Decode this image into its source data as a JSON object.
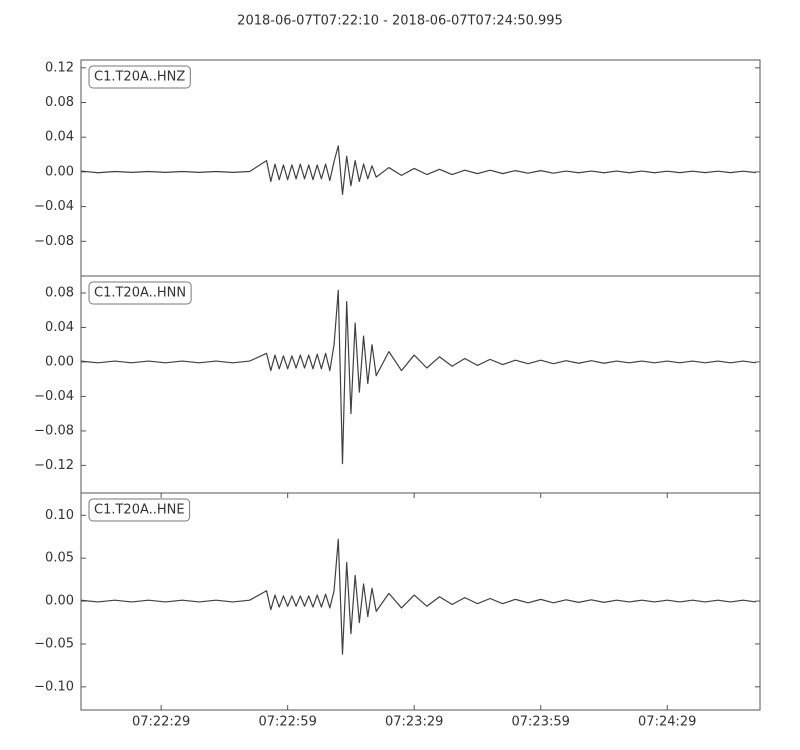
{
  "title": "2018-06-07T07:22:10  -  2018-06-07T07:24:50.995",
  "chart_data": [
    {
      "type": "line",
      "label": "C1.T20A..HNZ",
      "xlim": [
        0,
        160.995
      ],
      "ylim": [
        -0.12,
        0.129
      ],
      "yticks": [
        {
          "value": -0.08,
          "label": "−0.08"
        },
        {
          "value": -0.04,
          "label": "−0.04"
        },
        {
          "value": 0,
          "label": "0.00"
        },
        {
          "value": 0.04,
          "label": "0.04"
        },
        {
          "value": 0.08,
          "label": "0.08"
        },
        {
          "value": 0.12,
          "label": "0.12"
        }
      ],
      "x": [
        0,
        4,
        8,
        12,
        16,
        20,
        24,
        28,
        32,
        36,
        40,
        44,
        45,
        46,
        47,
        48,
        49,
        50,
        51,
        52,
        53,
        54,
        55,
        56,
        57,
        58,
        59,
        60,
        61,
        62,
        63,
        64,
        65,
        66,
        67,
        68,
        69,
        70,
        73,
        76,
        79,
        82,
        85,
        88,
        91,
        94,
        97,
        100,
        103,
        106,
        109,
        112,
        115,
        118,
        121,
        124,
        127,
        130,
        133,
        136,
        139,
        142,
        145,
        148,
        151,
        154,
        157,
        160
      ],
      "series": [
        {
          "color": "#404040",
          "values": [
            0.001,
            -0.001,
            0.0005,
            -0.0005,
            0.0005,
            -0.0005,
            0.0005,
            -0.0005,
            0.0005,
            -0.0005,
            0.0005,
            0.013,
            -0.011,
            0.009,
            -0.009,
            0.008,
            -0.009,
            0.008,
            -0.008,
            0.009,
            -0.008,
            0.008,
            -0.009,
            0.008,
            -0.008,
            0.009,
            -0.01,
            0.012,
            0.03,
            -0.026,
            0.018,
            -0.016,
            0.013,
            -0.011,
            0.009,
            -0.008,
            0.007,
            -0.006,
            0.005,
            -0.004,
            0.004,
            -0.003,
            0.003,
            -0.003,
            0.002,
            -0.002,
            0.002,
            -0.002,
            0.0015,
            -0.0015,
            0.0015,
            -0.0015,
            0.001,
            -0.001,
            0.001,
            -0.001,
            0.001,
            -0.001,
            0.001,
            -0.001,
            0.0008,
            -0.0008,
            0.0008,
            -0.0008,
            0.0008,
            -0.0008,
            0.0008,
            -0.0008
          ]
        }
      ]
    },
    {
      "type": "line",
      "label": "C1.T20A..HNN",
      "xlim": [
        0,
        160.995
      ],
      "ylim": [
        -0.152,
        0.0997
      ],
      "yticks": [
        {
          "value": -0.12,
          "label": "−0.12"
        },
        {
          "value": -0.08,
          "label": "−0.08"
        },
        {
          "value": -0.04,
          "label": "−0.04"
        },
        {
          "value": 0,
          "label": "0.00"
        },
        {
          "value": 0.04,
          "label": "0.04"
        },
        {
          "value": 0.08,
          "label": "0.08"
        }
      ],
      "x": [
        0,
        4,
        8,
        12,
        16,
        20,
        24,
        28,
        32,
        36,
        40,
        44,
        45,
        46,
        47,
        48,
        49,
        50,
        51,
        52,
        53,
        54,
        55,
        56,
        57,
        58,
        59,
        60,
        61,
        62,
        63,
        64,
        65,
        66,
        67,
        68,
        69,
        70,
        73,
        76,
        79,
        82,
        85,
        88,
        91,
        94,
        97,
        100,
        103,
        106,
        109,
        112,
        115,
        118,
        121,
        124,
        127,
        130,
        133,
        136,
        139,
        142,
        145,
        148,
        151,
        154,
        157,
        160
      ],
      "series": [
        {
          "color": "#404040",
          "values": [
            0.001,
            -0.001,
            0.001,
            -0.001,
            0.001,
            -0.001,
            0.001,
            -0.001,
            0.001,
            -0.001,
            0.001,
            0.01,
            -0.01,
            0.008,
            -0.008,
            0.007,
            -0.008,
            0.007,
            -0.007,
            0.008,
            -0.007,
            0.008,
            -0.008,
            0.009,
            -0.008,
            0.01,
            -0.01,
            0.02,
            0.083,
            -0.118,
            0.07,
            -0.06,
            0.045,
            -0.035,
            0.03,
            -0.025,
            0.02,
            -0.016,
            0.012,
            -0.01,
            0.008,
            -0.007,
            0.006,
            -0.005,
            0.004,
            -0.004,
            0.003,
            -0.003,
            0.002,
            -0.002,
            0.002,
            -0.002,
            0.0015,
            -0.0015,
            0.0015,
            -0.0015,
            0.001,
            -0.001,
            0.001,
            -0.001,
            0.001,
            -0.001,
            0.001,
            -0.001,
            0.001,
            -0.001,
            0.001,
            -0.001
          ]
        }
      ]
    },
    {
      "type": "line",
      "label": "C1.T20A..HNE",
      "xlim": [
        0,
        160.995
      ],
      "ylim": [
        -0.127,
        0.126
      ],
      "yticks": [
        {
          "value": -0.1,
          "label": "−0.10"
        },
        {
          "value": -0.05,
          "label": "−0.05"
        },
        {
          "value": 0,
          "label": "0.00"
        },
        {
          "value": 0.05,
          "label": "0.05"
        },
        {
          "value": 0.1,
          "label": "0.10"
        }
      ],
      "xticks": [
        {
          "value": 19,
          "label": "07:22:29"
        },
        {
          "value": 49,
          "label": "07:22:59"
        },
        {
          "value": 79,
          "label": "07:23:29"
        },
        {
          "value": 109,
          "label": "07:23:59"
        },
        {
          "value": 139,
          "label": "07:24:29"
        }
      ],
      "x": [
        0,
        4,
        8,
        12,
        16,
        20,
        24,
        28,
        32,
        36,
        40,
        44,
        45,
        46,
        47,
        48,
        49,
        50,
        51,
        52,
        53,
        54,
        55,
        56,
        57,
        58,
        59,
        60,
        61,
        62,
        63,
        64,
        65,
        66,
        67,
        68,
        69,
        70,
        73,
        76,
        79,
        82,
        85,
        88,
        91,
        94,
        97,
        100,
        103,
        106,
        109,
        112,
        115,
        118,
        121,
        124,
        127,
        130,
        133,
        136,
        139,
        142,
        145,
        148,
        151,
        154,
        157,
        160
      ],
      "series": [
        {
          "color": "#404040",
          "values": [
            0.001,
            -0.001,
            0.001,
            -0.001,
            0.001,
            -0.001,
            0.001,
            -0.001,
            0.001,
            -0.001,
            0.001,
            0.012,
            -0.01,
            0.007,
            -0.007,
            0.006,
            -0.006,
            0.006,
            -0.006,
            0.006,
            -0.006,
            0.006,
            -0.007,
            0.007,
            -0.007,
            0.008,
            -0.008,
            0.012,
            0.072,
            -0.062,
            0.045,
            -0.038,
            0.03,
            -0.025,
            0.02,
            -0.018,
            0.015,
            -0.012,
            0.009,
            -0.008,
            0.007,
            -0.006,
            0.005,
            -0.004,
            0.004,
            -0.003,
            0.003,
            -0.003,
            0.002,
            -0.002,
            0.002,
            -0.002,
            0.0015,
            -0.0015,
            0.0015,
            -0.0015,
            0.001,
            -0.001,
            0.001,
            -0.001,
            0.001,
            -0.001,
            0.001,
            -0.001,
            0.001,
            -0.001,
            0.001,
            -0.001
          ]
        }
      ]
    }
  ]
}
